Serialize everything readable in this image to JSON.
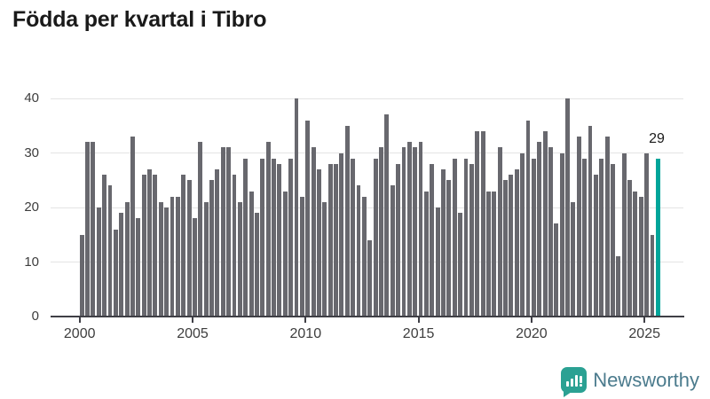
{
  "title": "Födda per kvartal i Tibro",
  "chart_data": {
    "type": "bar",
    "title": "Födda per kvartal i Tibro",
    "xlabel": "",
    "ylabel": "",
    "x_start": "2000-Q1",
    "x_end": "2025-Q3",
    "x_tick_labels": [
      "2000",
      "2005",
      "2010",
      "2015",
      "2020",
      "2025"
    ],
    "y_ticks": [
      0,
      10,
      20,
      30,
      40
    ],
    "ylim": [
      0,
      40
    ],
    "grid": true,
    "bar_color": "#68686e",
    "highlight_color": "#00a59a",
    "highlight_index": 102,
    "highlight_label": "29",
    "values": [
      15,
      32,
      32,
      20,
      26,
      24,
      16,
      19,
      21,
      33,
      18,
      26,
      27,
      26,
      21,
      20,
      22,
      22,
      26,
      25,
      18,
      32,
      21,
      25,
      27,
      31,
      31,
      26,
      21,
      29,
      23,
      19,
      29,
      32,
      29,
      28,
      23,
      29,
      40,
      22,
      36,
      31,
      27,
      21,
      28,
      28,
      30,
      35,
      29,
      24,
      22,
      14,
      29,
      31,
      37,
      24,
      28,
      31,
      32,
      31,
      32,
      23,
      28,
      20,
      27,
      25,
      29,
      19,
      29,
      28,
      34,
      34,
      23,
      23,
      31,
      25,
      26,
      27,
      30,
      36,
      29,
      32,
      34,
      31,
      17,
      30,
      40,
      21,
      33,
      29,
      35,
      26,
      29,
      33,
      28,
      11,
      30,
      25,
      23,
      22,
      30,
      15,
      29
    ]
  },
  "annotation": {
    "last_value": "29"
  },
  "branding": {
    "name": "Newsworthy"
  }
}
